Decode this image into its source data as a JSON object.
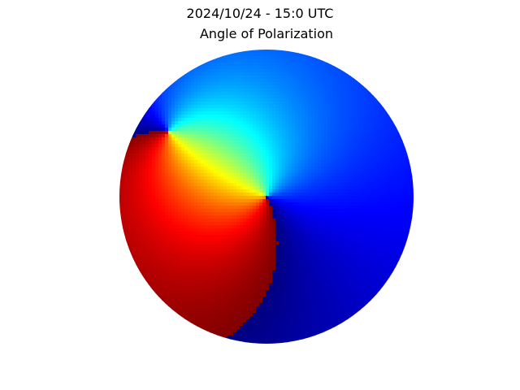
{
  "chart_data": {
    "type": "heatmap",
    "title": "2024/10/24 - 15:0 UTC",
    "subtitle": "Angle of Polarization",
    "projection": "polar sky dome (full hemisphere, no axes, no ticks, no grid)",
    "quantity": "angle of polarization",
    "colormap": "jet",
    "value_range": [
      -90,
      90
    ],
    "colorbar": "none",
    "legend": "none",
    "features": {
      "center_zenith_convergence": true,
      "secondary_singularity": "upper-left, near solar direction",
      "wrap_discontinuity_line": "from upper-left edge through center to lower-right edge"
    },
    "colors": {
      "background": "#ffffff",
      "text": "#000000"
    }
  }
}
